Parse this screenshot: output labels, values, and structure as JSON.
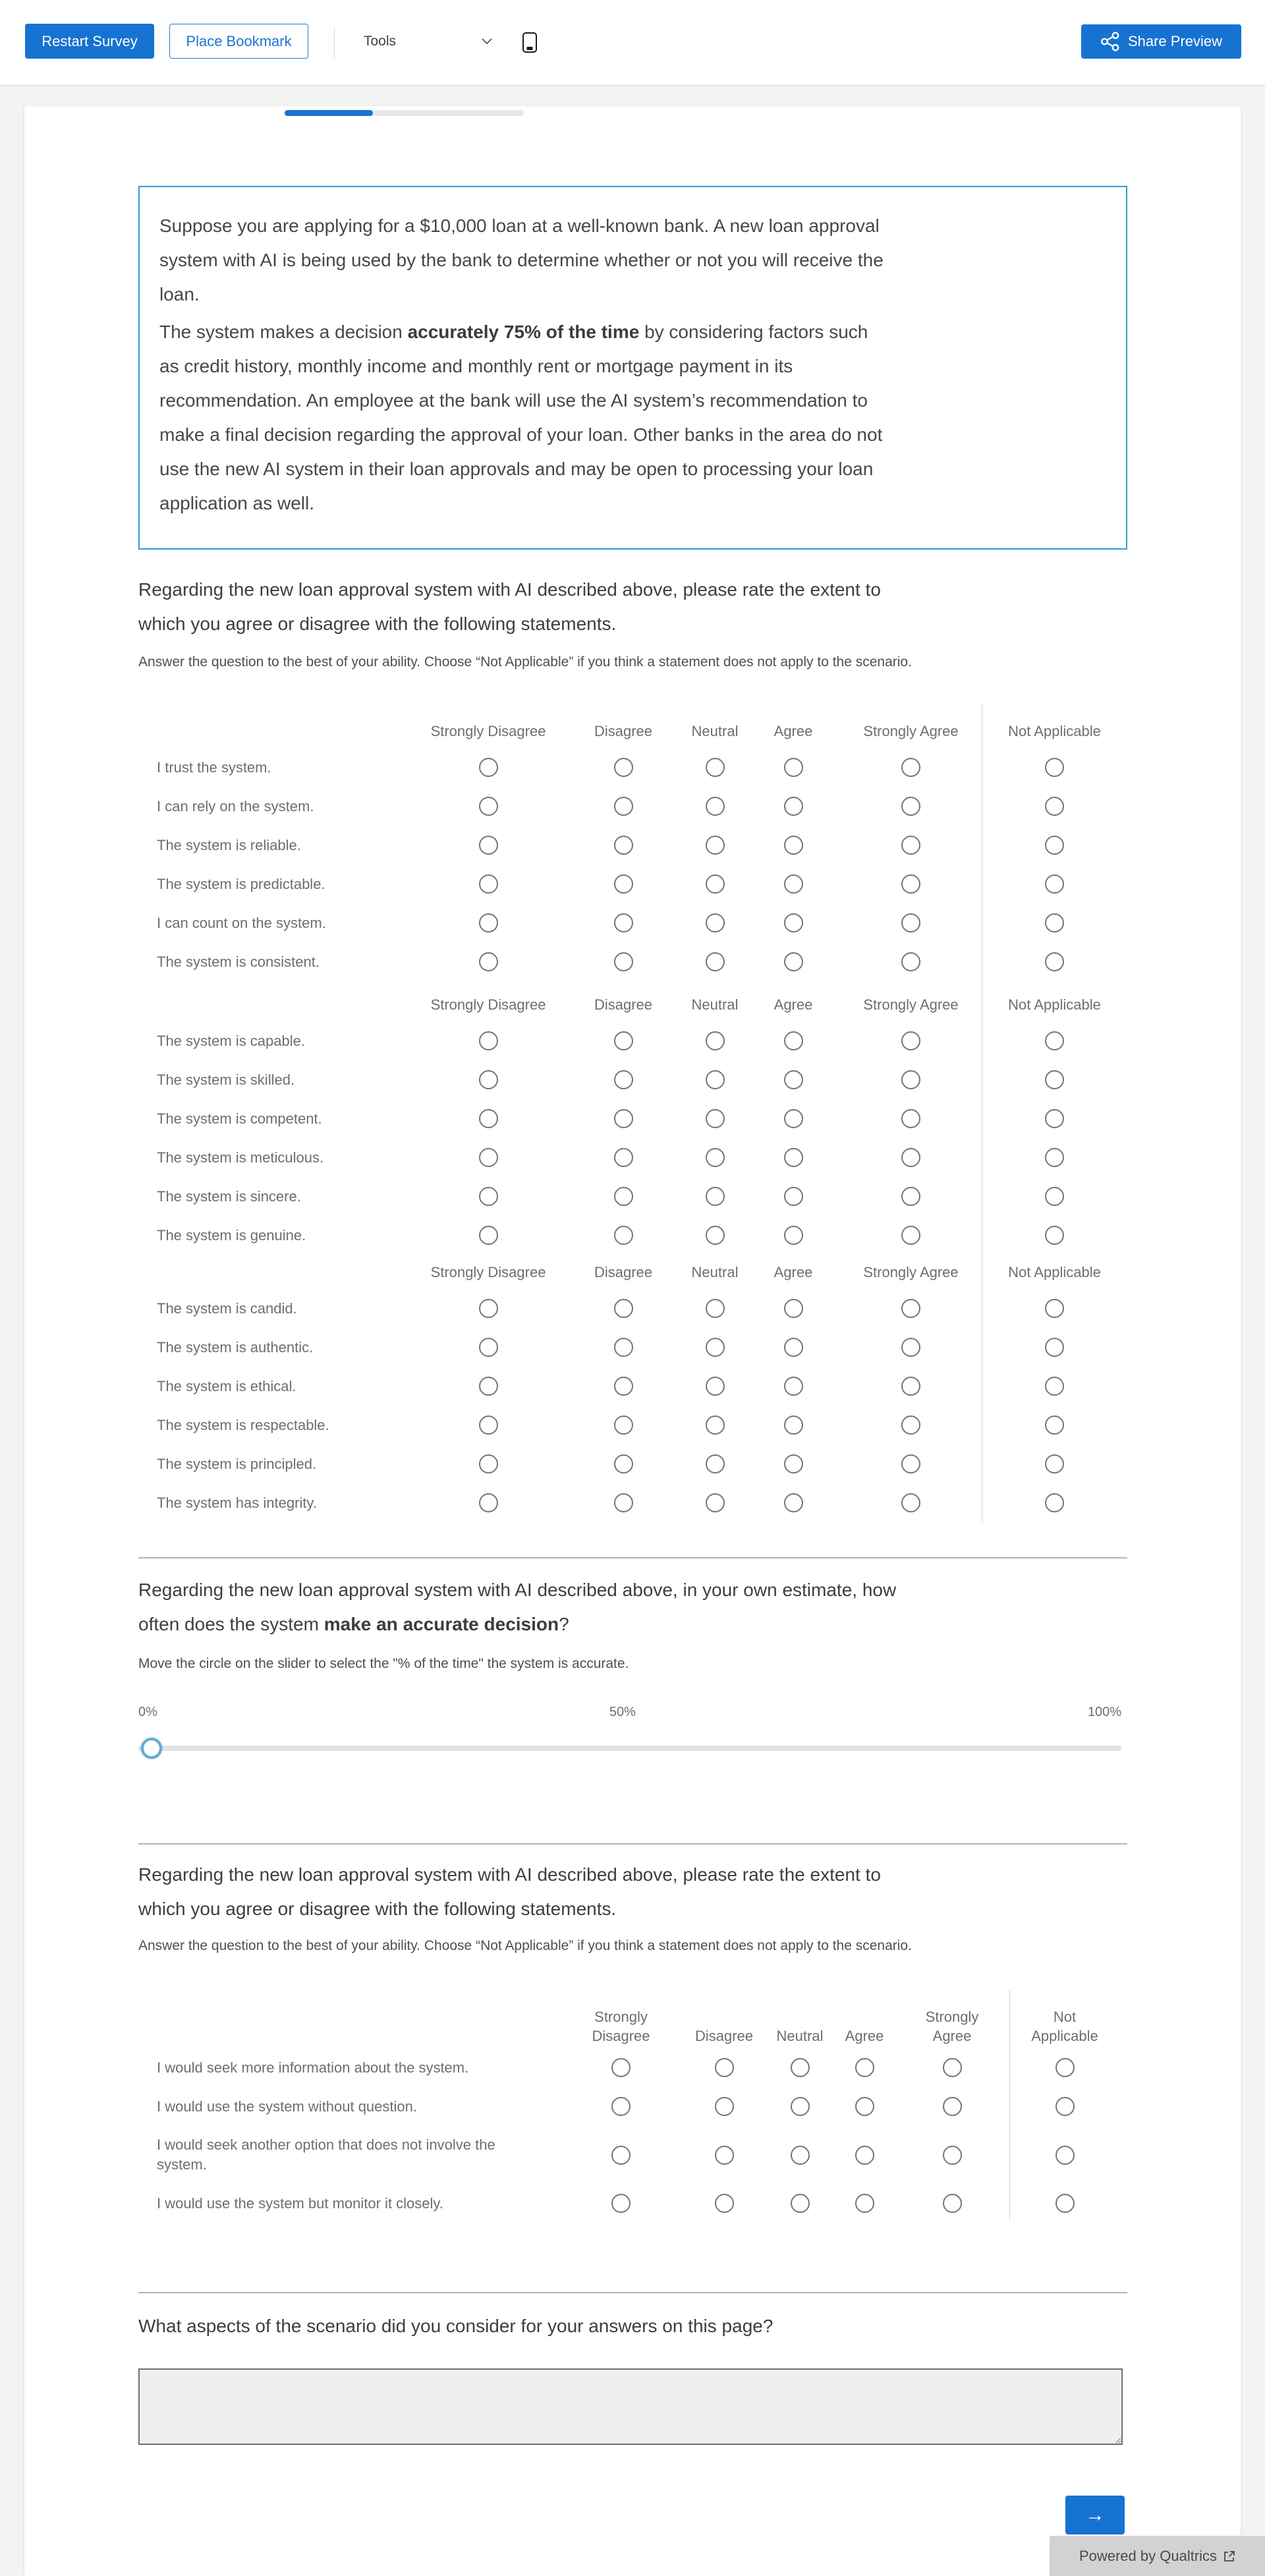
{
  "toolbar": {
    "restart_label": "Restart Survey",
    "bookmark_label": "Place Bookmark",
    "tools_label": "Tools",
    "share_label": "Share Preview"
  },
  "progress": {
    "percent": 37
  },
  "scenario": {
    "lines_p1": [
      "Suppose you are applying for a $10,000 loan at a well-known bank. A new loan approval",
      "system with AI is being used by the bank to determine whether or not you will receive the",
      "loan."
    ],
    "line4_pre": "The system makes a decision ",
    "line4_bold": "accurately 75% of the time",
    "line4_post": " by considering factors such",
    "lines_p2": [
      "as credit history, monthly income and monthly rent or mortgage payment in its",
      "recommendation. An employee at the bank will use the AI system’s recommendation to",
      "make a final decision regarding the approval of your loan. Other banks in the area do not",
      "use the new AI system in their loan approvals and may be open to processing your loan",
      "application as well."
    ]
  },
  "q1": {
    "line1": "Regarding the new loan approval system with AI described above, please rate the extent to",
    "line2": "which you agree or disagree with the following statements.",
    "instruction": "Answer the question to the best of your ability. Choose “Not Applicable” if you think a statement does not apply to the scenario."
  },
  "matrix1": {
    "columns": [
      "Strongly Disagree",
      "Disagree",
      "Neutral",
      "Agree",
      "Strongly Agree",
      "Not Applicable"
    ],
    "groups": [
      {
        "rows": [
          "I trust the system.",
          "I can rely on the system.",
          "The system is reliable.",
          "The system is predictable.",
          "I can count on the system.",
          "The system is consistent."
        ]
      },
      {
        "rows": [
          "The system is capable.",
          "The system is skilled.",
          "The system is competent.",
          "The system is meticulous.",
          "The system is sincere.",
          "The system is genuine."
        ]
      },
      {
        "rows": [
          "The system is candid.",
          "The system is authentic.",
          "The system is ethical.",
          "The system is respectable.",
          "The system is principled.",
          "The system has integrity."
        ]
      }
    ]
  },
  "q2": {
    "line1": "Regarding the new loan approval system with AI described above, in your own estimate, how",
    "line2_pre": "often does the system ",
    "line2_bold": "make an accurate decision",
    "line2_post": "?",
    "instruction": "Move the circle on the slider to select the \"% of the time\" the system is accurate.",
    "slider": {
      "labels": [
        "0%",
        "50%",
        "100%"
      ],
      "value": 0
    }
  },
  "q3": {
    "line1": "Regarding the new loan approval system with AI described above, please rate the extent to",
    "line2": "which you agree or disagree with the following statements.",
    "instruction": "Answer the question to the best of your ability. Choose “Not Applicable” if you think a statement does not apply to the scenario."
  },
  "matrix2": {
    "columns": [
      "Strongly Disagree",
      "Disagree",
      "Neutral",
      "Agree",
      "Strongly Agree",
      "Not Applicable"
    ],
    "rows": [
      "I would seek more information about the system.",
      "I would use the system without question.",
      "I would seek another option that does not involve the system.",
      "I would use the system but monitor it closely."
    ]
  },
  "q4": {
    "text": "What aspects of the scenario did you consider for your answers on this page?"
  },
  "next_label": "→",
  "footer": {
    "powered_label": "Powered by Qualtrics"
  },
  "colors": {
    "accent_blue": "#1673d2",
    "scenario_border": "#2d9fd1"
  }
}
